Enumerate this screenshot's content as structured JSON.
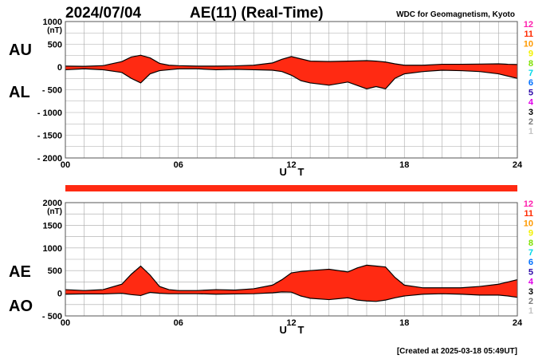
{
  "header": {
    "date": "2024/07/04",
    "title": "AE(11) (Real-Time)",
    "source": "WDC for Geomagnetism, Kyoto"
  },
  "footer": {
    "created": "[Created at 2025-03-18 05:49UT]"
  },
  "colors": {
    "fill": "#ff2a12",
    "line": "#000000",
    "grid": "#a8a8a8",
    "status_bar": "#ff2a12"
  },
  "legend": {
    "items": [
      {
        "label": "12",
        "color": "#ff1fae"
      },
      {
        "label": "11",
        "color": "#ff2a00"
      },
      {
        "label": "10",
        "color": "#ff9a00"
      },
      {
        "label": "9",
        "color": "#f2f200"
      },
      {
        "label": "8",
        "color": "#7fe000"
      },
      {
        "label": "7",
        "color": "#00d8e8"
      },
      {
        "label": "6",
        "color": "#0070ff"
      },
      {
        "label": "5",
        "color": "#2d0aa8"
      },
      {
        "label": "4",
        "color": "#e000e8"
      },
      {
        "label": "3",
        "color": "#000000"
      },
      {
        "label": "2",
        "color": "#7a7a7a"
      },
      {
        "label": "1",
        "color": "#c4c4c4"
      }
    ]
  },
  "chart_data": [
    {
      "type": "area",
      "upper_label": "AU",
      "lower_label": "AL",
      "unit": "(nT)",
      "xlabel": "U T",
      "x_ticks": [
        0,
        6,
        12,
        18,
        24
      ],
      "x_tick_labels": [
        "00",
        "06",
        "12",
        "18",
        "24"
      ],
      "ylim": [
        -2000,
        1000
      ],
      "y_ticks": [
        1000,
        500,
        0,
        -500,
        -1000,
        -1500,
        -2000
      ],
      "y_tick_labels": [
        "1000",
        "500",
        "0",
        "- 500",
        "- 1000",
        "- 1500",
        "- 2000"
      ],
      "grid": true,
      "series": [
        {
          "name": "AU",
          "x": [
            0,
            1,
            2,
            3,
            3.5,
            4,
            4.5,
            5,
            5.5,
            6,
            7,
            8,
            9,
            10,
            11,
            11.5,
            12,
            12.5,
            13,
            14,
            15,
            16,
            16.5,
            17,
            17.5,
            18,
            19,
            20,
            21,
            22,
            23,
            23.5,
            24
          ],
          "values": [
            20,
            15,
            30,
            120,
            220,
            260,
            200,
            80,
            40,
            30,
            20,
            20,
            25,
            40,
            90,
            170,
            230,
            180,
            130,
            120,
            130,
            140,
            130,
            110,
            70,
            40,
            40,
            60,
            60,
            65,
            70,
            60,
            55
          ]
        },
        {
          "name": "AL",
          "x": [
            0,
            1,
            2,
            3,
            3.5,
            4,
            4.5,
            5,
            5.5,
            6,
            7,
            8,
            9,
            10,
            11,
            11.5,
            12,
            12.5,
            13,
            14,
            15,
            16,
            16.5,
            17,
            17.5,
            18,
            19,
            20,
            21,
            22,
            23,
            23.5,
            24
          ],
          "values": [
            -60,
            -40,
            -60,
            -120,
            -250,
            -350,
            -150,
            -80,
            -60,
            -40,
            -40,
            -60,
            -50,
            -60,
            -70,
            -100,
            -180,
            -300,
            -350,
            -400,
            -330,
            -480,
            -430,
            -480,
            -250,
            -150,
            -100,
            -70,
            -80,
            -100,
            -150,
            -200,
            -250
          ]
        }
      ]
    },
    {
      "type": "area",
      "upper_label": "AE",
      "lower_label": "AO",
      "unit": "(nT)",
      "xlabel": "U T",
      "x_ticks": [
        0,
        6,
        12,
        18,
        24
      ],
      "x_tick_labels": [
        "00",
        "06",
        "12",
        "18",
        "24"
      ],
      "ylim": [
        -500,
        2000
      ],
      "y_ticks": [
        2000,
        1500,
        1000,
        500,
        0,
        -500
      ],
      "y_tick_labels": [
        "2000",
        "1500",
        "1000",
        "500",
        "0",
        "- 500"
      ],
      "grid": true,
      "series": [
        {
          "name": "AE",
          "x": [
            0,
            1,
            2,
            3,
            3.5,
            4,
            4.5,
            5,
            5.5,
            6,
            7,
            8,
            9,
            10,
            11,
            11.5,
            12,
            12.5,
            13,
            14,
            15,
            15.5,
            16,
            16.5,
            17,
            17.5,
            18,
            19,
            20,
            21,
            22,
            23,
            23.5,
            24
          ],
          "values": [
            80,
            60,
            80,
            200,
            420,
            600,
            400,
            150,
            80,
            60,
            60,
            80,
            70,
            100,
            180,
            300,
            450,
            480,
            500,
            530,
            470,
            560,
            620,
            600,
            580,
            350,
            180,
            120,
            120,
            120,
            150,
            200,
            250,
            300
          ]
        },
        {
          "name": "AO",
          "x": [
            0,
            1,
            2,
            3,
            3.5,
            4,
            4.5,
            5,
            5.5,
            6,
            7,
            8,
            9,
            10,
            11,
            11.5,
            12,
            12.5,
            13,
            14,
            15,
            15.5,
            16,
            16.5,
            17,
            17.5,
            18,
            19,
            20,
            21,
            22,
            23,
            23.5,
            24
          ],
          "values": [
            -20,
            -15,
            -15,
            0,
            -30,
            -50,
            20,
            0,
            -10,
            -10,
            -10,
            -20,
            -15,
            -10,
            10,
            30,
            25,
            -60,
            -110,
            -140,
            -100,
            -150,
            -170,
            -180,
            -150,
            -100,
            -60,
            -20,
            -10,
            -20,
            -40,
            -40,
            -60,
            -90
          ]
        }
      ]
    }
  ]
}
